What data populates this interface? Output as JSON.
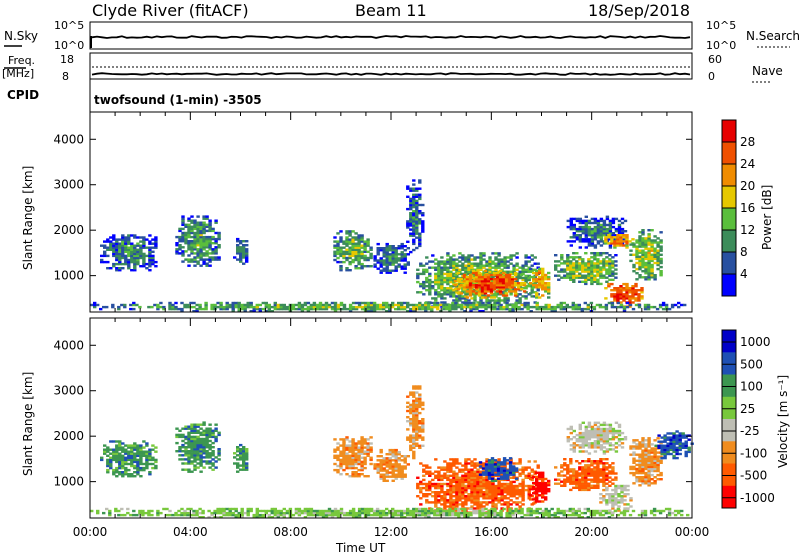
{
  "header": {
    "station": "Clyde River (fitACF)",
    "beam": "Beam 11",
    "date": "18/Sep/2018"
  },
  "noise_panel": {
    "left_label": "N.Sky",
    "left_ticks": [
      "10^5",
      "10^0"
    ],
    "right_ticks": [
      "10^5",
      "10^0"
    ],
    "right_label": "N.Search"
  },
  "freq_panel": {
    "left_label_top": "Freq.",
    "left_label_unit": "[MHz]",
    "left_ticks": [
      "18",
      "8"
    ],
    "right_ticks": [
      "60",
      "0"
    ],
    "right_label": "Nave",
    "cpid_label": "CPID",
    "program": "twofsound (1-min) -3505"
  },
  "colors": {
    "power": [
      "#0000ff",
      "#2850a0",
      "#3c8c5a",
      "#5abe3c",
      "#e6c800",
      "#f08c00",
      "#f05000",
      "#e60000"
    ],
    "velocity": [
      "#ff0000",
      "#ff5a00",
      "#f08c1e",
      "#bebeb4",
      "#78c83c",
      "#3c9650",
      "#1e50b4",
      "#0000c8"
    ]
  },
  "chart_data": [
    {
      "name": "power",
      "type": "heatmap",
      "xlabel": "",
      "ylabel": "Slant Range [km]",
      "xlim": [
        "00:00",
        "24:00"
      ],
      "ylim": [
        200,
        4600
      ],
      "yticks": [
        "1000",
        "2000",
        "3000",
        "4000"
      ],
      "colorbar_label": "Power [dB]",
      "colorbar_ticks": [
        "4",
        "8",
        "12",
        "16",
        "20",
        "24",
        "28"
      ],
      "regions": [
        {
          "t0": 0.4,
          "t1": 2.6,
          "r0": 1100,
          "r1": 1900,
          "v": 10
        },
        {
          "t0": 3.4,
          "t1": 5.1,
          "r0": 1200,
          "r1": 2300,
          "v": 12
        },
        {
          "t0": 5.7,
          "t1": 6.3,
          "r0": 1200,
          "r1": 1800,
          "v": 9
        },
        {
          "t0": 9.7,
          "t1": 11.2,
          "r0": 1100,
          "r1": 2000,
          "v": 14
        },
        {
          "t0": 11.3,
          "t1": 12.7,
          "r0": 1000,
          "r1": 1700,
          "v": 9
        },
        {
          "t0": 12.6,
          "t1": 13.2,
          "r0": 1500,
          "r1": 3100,
          "v": 8
        },
        {
          "t0": 13.0,
          "t1": 17.9,
          "r0": 300,
          "r1": 1500,
          "v": 15
        },
        {
          "t0": 14.5,
          "t1": 17.3,
          "r0": 500,
          "r1": 1100,
          "v": 27
        },
        {
          "t0": 17.5,
          "t1": 18.3,
          "r0": 500,
          "r1": 1200,
          "v": 22
        },
        {
          "t0": 18.5,
          "t1": 21.0,
          "r0": 800,
          "r1": 1500,
          "v": 16
        },
        {
          "t0": 19.0,
          "t1": 21.3,
          "r0": 1600,
          "r1": 2300,
          "v": 9
        },
        {
          "t0": 20.5,
          "t1": 21.6,
          "r0": 1600,
          "r1": 1900,
          "v": 24
        },
        {
          "t0": 20.5,
          "t1": 22.0,
          "r0": 300,
          "r1": 800,
          "v": 28
        },
        {
          "t0": 21.5,
          "t1": 22.8,
          "r0": 900,
          "r1": 2000,
          "v": 17
        },
        {
          "t0": 0.0,
          "t1": 24.0,
          "r0": 200,
          "r1": 400,
          "v": 14
        }
      ]
    },
    {
      "name": "velocity",
      "type": "heatmap",
      "xlabel": "Time UT",
      "ylabel": "Slant Range [km]",
      "xticks": [
        "00:00",
        "04:00",
        "08:00",
        "12:00",
        "16:00",
        "20:00",
        "00:00"
      ],
      "ylim": [
        200,
        4600
      ],
      "yticks": [
        "1000",
        "2000",
        "3000",
        "4000"
      ],
      "colorbar_label": "Velocity [m s⁻¹]",
      "colorbar_ticks": [
        "1000",
        "500",
        "100",
        "25",
        "-25",
        "-100",
        "-500",
        "-1000"
      ],
      "regions": [
        {
          "t0": 0.4,
          "t1": 2.6,
          "r0": 1100,
          "r1": 1900,
          "v": 5
        },
        {
          "t0": 3.4,
          "t1": 5.1,
          "r0": 1200,
          "r1": 2300,
          "v": 5
        },
        {
          "t0": 5.7,
          "t1": 6.3,
          "r0": 1200,
          "r1": 1800,
          "v": 5
        },
        {
          "t0": 9.7,
          "t1": 11.2,
          "r0": 1100,
          "r1": 2000,
          "v": 2
        },
        {
          "t0": 11.3,
          "t1": 12.7,
          "r0": 1000,
          "r1": 1700,
          "v": 2
        },
        {
          "t0": 12.6,
          "t1": 13.2,
          "r0": 1500,
          "r1": 3100,
          "v": 2
        },
        {
          "t0": 13.0,
          "t1": 17.9,
          "r0": 300,
          "r1": 1500,
          "v": 1
        },
        {
          "t0": 15.5,
          "t1": 17.0,
          "r0": 1000,
          "r1": 1500,
          "v": 6
        },
        {
          "t0": 17.5,
          "t1": 18.3,
          "r0": 500,
          "r1": 1200,
          "v": 0
        },
        {
          "t0": 18.5,
          "t1": 21.0,
          "r0": 800,
          "r1": 1500,
          "v": 1
        },
        {
          "t0": 19.0,
          "t1": 21.3,
          "r0": 1600,
          "r1": 2300,
          "v": 3
        },
        {
          "t0": 20.3,
          "t1": 21.6,
          "r0": 300,
          "r1": 900,
          "v": 3
        },
        {
          "t0": 21.5,
          "t1": 22.8,
          "r0": 900,
          "r1": 2000,
          "v": 2
        },
        {
          "t0": 22.5,
          "t1": 24.0,
          "r0": 1500,
          "r1": 2100,
          "v": 6
        },
        {
          "t0": 0.0,
          "t1": 24.0,
          "r0": 200,
          "r1": 400,
          "v": 4
        }
      ]
    }
  ]
}
